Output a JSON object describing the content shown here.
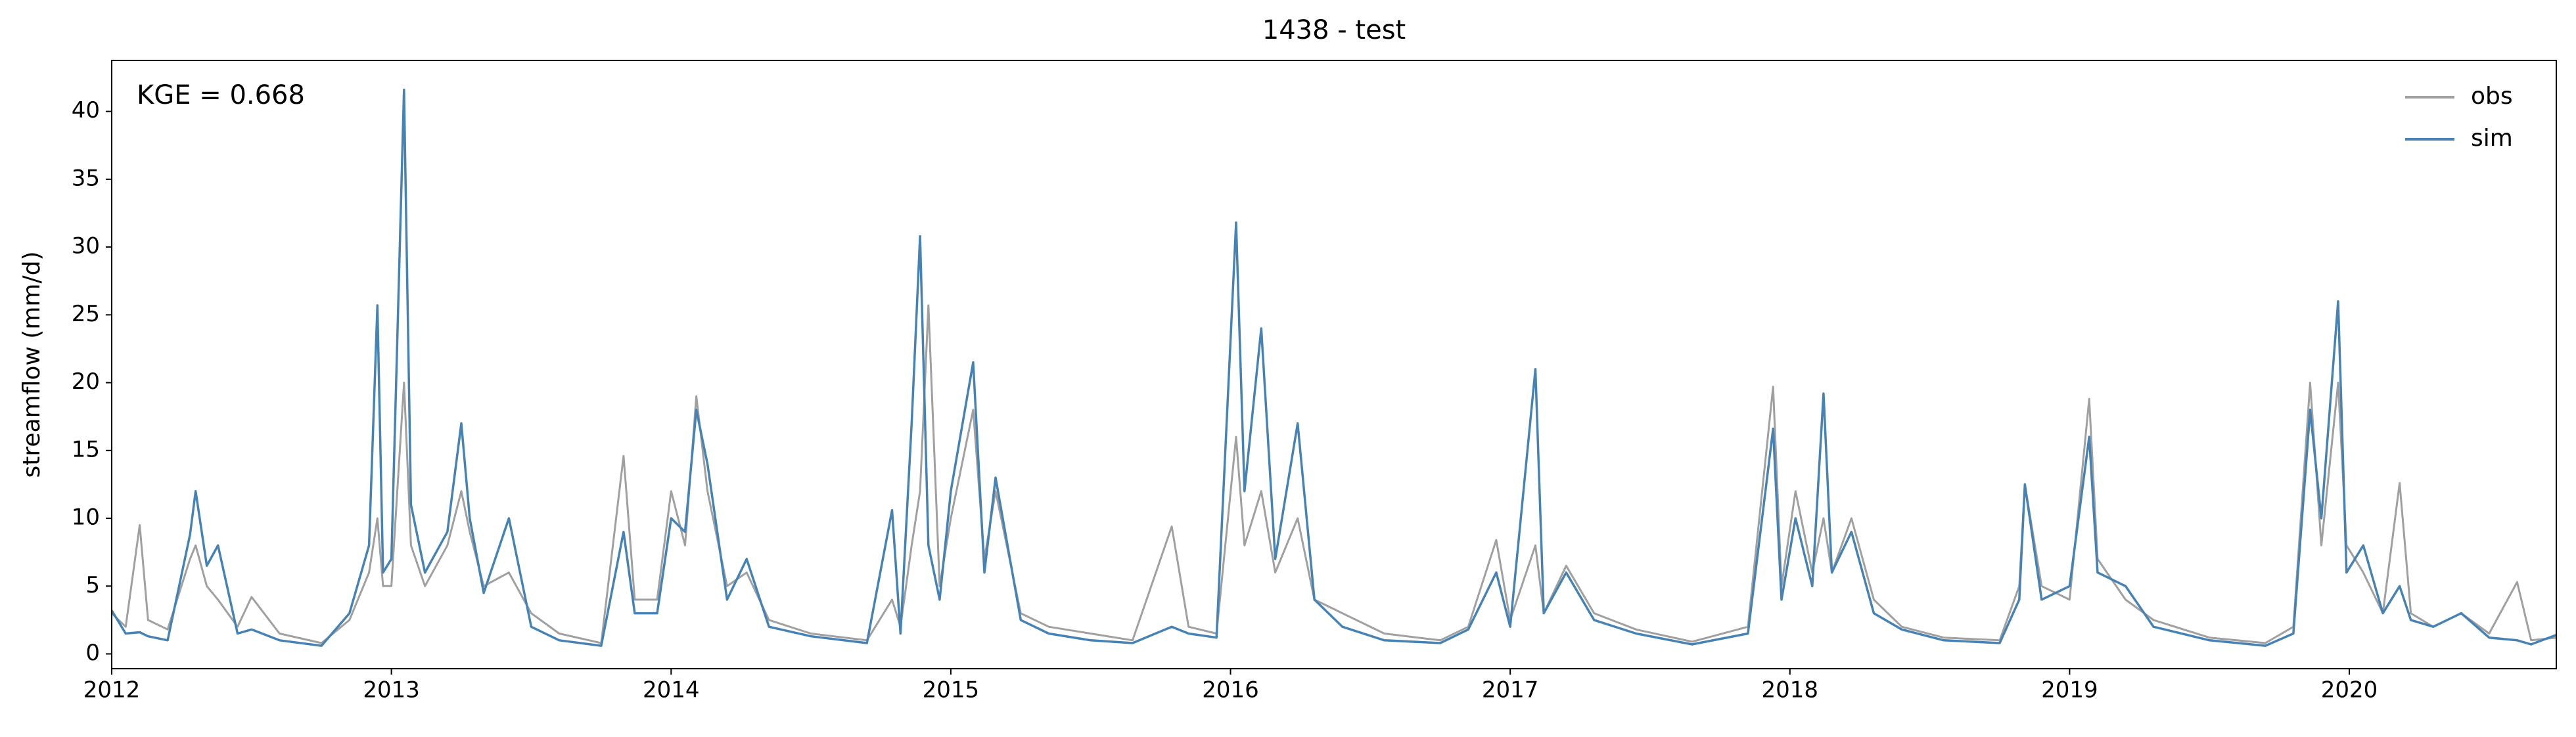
{
  "chart_data": {
    "type": "line",
    "title": "1438 - test",
    "ylabel": "streamflow (mm/d)",
    "annotation": "KGE = 0.668",
    "legend": "upper right",
    "x": [
      2012.0,
      2012.05,
      2012.1,
      2012.13,
      2012.2,
      2012.28,
      2012.3,
      2012.34,
      2012.38,
      2012.45,
      2012.5,
      2012.6,
      2012.75,
      2012.85,
      2012.92,
      2012.95,
      2012.97,
      2013.0,
      2013.045,
      2013.07,
      2013.12,
      2013.2,
      2013.25,
      2013.28,
      2013.33,
      2013.42,
      2013.5,
      2013.6,
      2013.75,
      2013.83,
      2013.87,
      2013.95,
      2014.0,
      2014.05,
      2014.09,
      2014.13,
      2014.2,
      2014.27,
      2014.35,
      2014.5,
      2014.7,
      2014.79,
      2014.82,
      2014.86,
      2014.89,
      2014.92,
      2014.96,
      2015.0,
      2015.08,
      2015.12,
      2015.16,
      2015.25,
      2015.35,
      2015.5,
      2015.65,
      2015.79,
      2015.85,
      2015.95,
      2016.02,
      2016.05,
      2016.11,
      2016.16,
      2016.24,
      2016.3,
      2016.4,
      2016.55,
      2016.75,
      2016.85,
      2016.95,
      2017.0,
      2017.09,
      2017.12,
      2017.2,
      2017.3,
      2017.45,
      2017.65,
      2017.85,
      2017.94,
      2017.97,
      2018.02,
      2018.08,
      2018.12,
      2018.15,
      2018.22,
      2018.3,
      2018.4,
      2018.55,
      2018.75,
      2018.82,
      2018.84,
      2018.9,
      2019.0,
      2019.07,
      2019.1,
      2019.2,
      2019.3,
      2019.5,
      2019.7,
      2019.8,
      2019.86,
      2019.9,
      2019.96,
      2019.99,
      2020.05,
      2020.12,
      2020.18,
      2020.22,
      2020.3,
      2020.4,
      2020.5,
      2020.6,
      2020.65,
      2020.74
    ],
    "series": [
      {
        "name": "obs",
        "color": "#a0a0a0",
        "values": [
          3.0,
          2.0,
          9.5,
          2.5,
          1.8,
          7.0,
          8.0,
          5.0,
          4.0,
          2.0,
          4.2,
          1.5,
          0.8,
          2.5,
          6.0,
          10.0,
          5.0,
          5.0,
          20.0,
          8.0,
          5.0,
          8.0,
          12.0,
          9.0,
          5.0,
          6.0,
          3.0,
          1.5,
          0.8,
          14.6,
          4.0,
          4.0,
          12.0,
          8.0,
          19.0,
          12.0,
          5.0,
          6.0,
          2.5,
          1.5,
          1.0,
          4.0,
          2.0,
          8.0,
          12.0,
          25.7,
          5.0,
          10.0,
          18.0,
          7.0,
          12.0,
          3.0,
          2.0,
          1.5,
          1.0,
          9.4,
          2.0,
          1.5,
          16.0,
          8.0,
          12.0,
          6.0,
          10.0,
          4.0,
          3.0,
          1.5,
          1.0,
          2.0,
          8.4,
          2.5,
          8.0,
          3.0,
          6.5,
          3.0,
          1.8,
          0.9,
          2.0,
          19.7,
          5.0,
          12.0,
          6.0,
          10.0,
          6.0,
          10.0,
          4.0,
          2.0,
          1.2,
          1.0,
          5.0,
          12.5,
          5.0,
          4.0,
          18.8,
          7.0,
          4.0,
          2.5,
          1.2,
          0.8,
          2.0,
          20.0,
          8.0,
          20.0,
          8.0,
          6.0,
          3.0,
          12.6,
          3.0,
          2.0,
          3.0,
          1.5,
          5.3,
          1.0,
          1.2
        ]
      },
      {
        "name": "sim",
        "color": "#4682b4",
        "values": [
          3.2,
          1.5,
          1.6,
          1.3,
          1.0,
          8.8,
          12.0,
          6.5,
          8.0,
          1.5,
          1.8,
          1.0,
          0.6,
          3.0,
          8.0,
          25.7,
          6.0,
          7.0,
          41.6,
          11.0,
          6.0,
          9.0,
          17.0,
          10.0,
          4.5,
          10.0,
          2.0,
          1.0,
          0.6,
          9.0,
          3.0,
          3.0,
          10.0,
          9.0,
          18.0,
          14.0,
          4.0,
          7.0,
          2.0,
          1.3,
          0.8,
          10.6,
          1.5,
          17.0,
          30.8,
          8.0,
          4.0,
          12.0,
          21.5,
          6.0,
          13.0,
          2.5,
          1.5,
          1.0,
          0.8,
          2.0,
          1.5,
          1.2,
          31.8,
          12.0,
          24.0,
          7.0,
          17.0,
          4.0,
          2.0,
          1.0,
          0.8,
          1.8,
          6.0,
          2.0,
          21.0,
          3.0,
          6.0,
          2.5,
          1.5,
          0.7,
          1.5,
          16.6,
          4.0,
          10.0,
          5.0,
          19.2,
          6.0,
          9.0,
          3.0,
          1.8,
          1.0,
          0.8,
          4.0,
          12.5,
          4.0,
          5.0,
          16.0,
          6.0,
          5.0,
          2.0,
          1.0,
          0.6,
          1.5,
          18.0,
          10.0,
          26.0,
          6.0,
          8.0,
          3.0,
          5.0,
          2.5,
          2.0,
          3.0,
          1.2,
          1.0,
          0.7,
          1.4
        ]
      }
    ],
    "xlim": [
      2012,
      2020.74
    ],
    "xticks": [
      2012,
      2013,
      2014,
      2015,
      2016,
      2017,
      2018,
      2019,
      2020
    ],
    "ylim": [
      -1.09,
      43.76
    ],
    "yticks": [
      0,
      5,
      10,
      15,
      20,
      25,
      30,
      35,
      40
    ],
    "grid": false
  }
}
